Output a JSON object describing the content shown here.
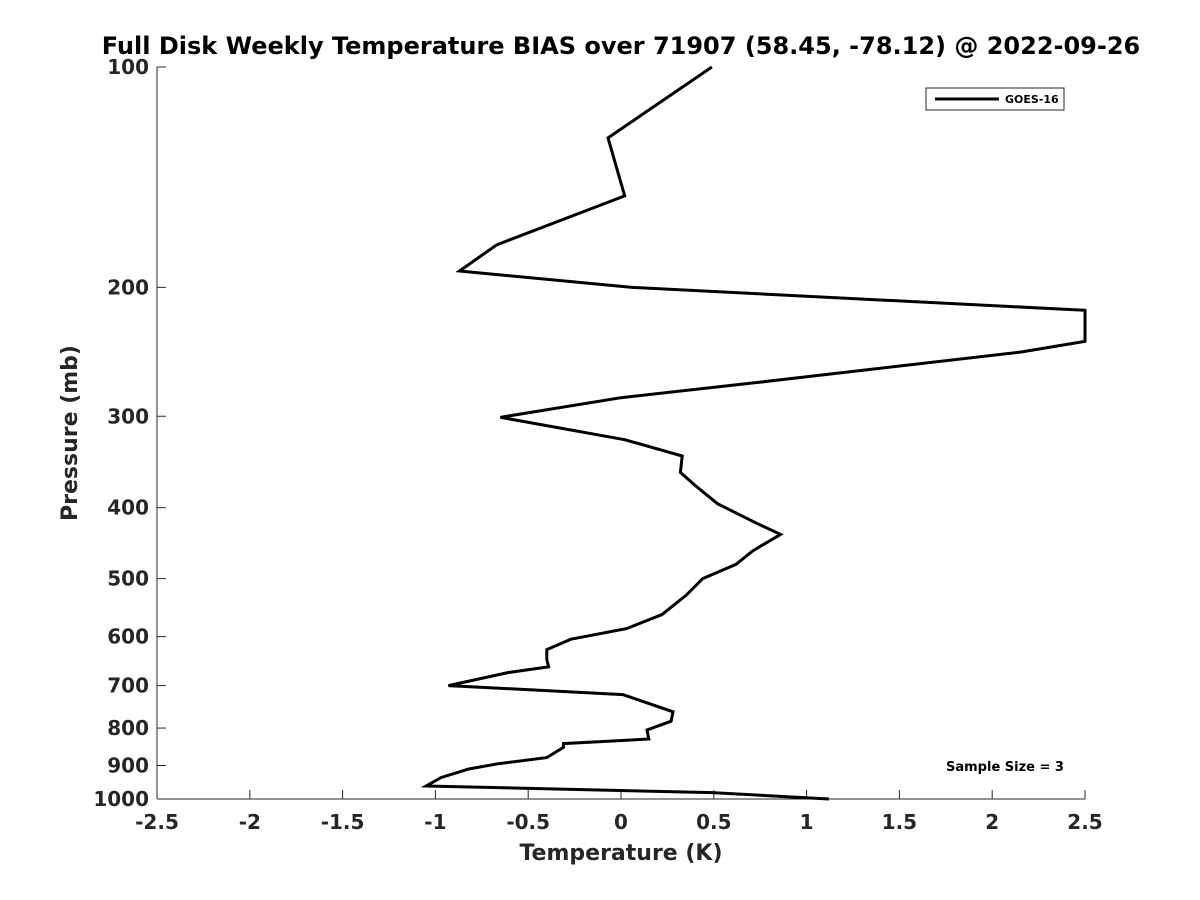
{
  "chart_data": {
    "type": "line",
    "title": "Full Disk Weekly Temperature BIAS over 71907 (58.45, -78.12) @ 2022-09-26",
    "xlabel": "Temperature (K)",
    "ylabel": "Pressure (mb)",
    "xlim": [
      -2.5,
      2.5
    ],
    "ylim": [
      100,
      1000
    ],
    "yscale": "log",
    "y_reversed": true,
    "x_ticks": [
      -2.5,
      -2,
      -1.5,
      -1,
      -0.5,
      0,
      0.5,
      1,
      1.5,
      2,
      2.5
    ],
    "x_tick_labels": [
      "-2.5",
      "-2",
      "-1.5",
      "-1",
      "-0.5",
      "0",
      "0.5",
      "1",
      "1.5",
      "2",
      "2.5"
    ],
    "y_ticks": [
      100,
      200,
      300,
      400,
      500,
      600,
      700,
      800,
      900,
      1000
    ],
    "y_tick_labels": [
      "100",
      "200",
      "300",
      "400",
      "500",
      "600",
      "700",
      "800",
      "900",
      "1000"
    ],
    "grid": false,
    "legend_position": "top-right",
    "annotation": "Sample Size = 3",
    "series": [
      {
        "name": "GOES-16",
        "color": "#000000",
        "x": [
          0.49,
          -0.07,
          0.02,
          -0.67,
          -0.87,
          0.06,
          2.5,
          2.5,
          2.16,
          0.72,
          0.0,
          -0.65,
          0.02,
          0.33,
          0.32,
          0.4,
          0.52,
          0.73,
          0.86,
          0.71,
          0.62,
          0.44,
          0.35,
          0.22,
          0.03,
          -0.27,
          -0.4,
          -0.4,
          -0.39,
          -0.61,
          -0.93,
          0.01,
          0.28,
          0.27,
          0.14,
          0.15,
          -0.31,
          -0.31,
          -0.4,
          -0.66,
          -0.82,
          -0.97,
          -1.05,
          0.49,
          1.12
        ],
        "y": [
          100,
          125,
          150,
          175,
          190,
          200,
          215,
          237,
          245,
          270,
          283,
          301,
          323,
          340,
          358,
          373,
          395,
          420,
          435,
          458,
          478,
          500,
          527,
          560,
          585,
          605,
          625,
          645,
          660,
          672,
          700,
          720,
          760,
          783,
          805,
          828,
          840,
          850,
          878,
          895,
          910,
          935,
          960,
          980,
          1000
        ]
      }
    ]
  }
}
